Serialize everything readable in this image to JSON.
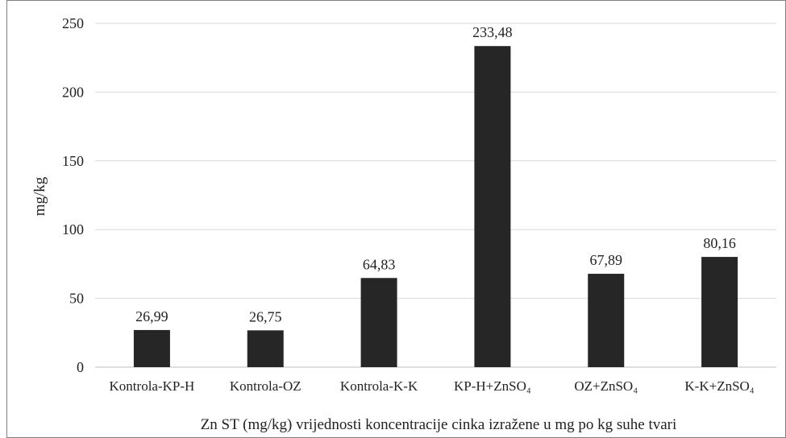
{
  "chart_data": {
    "type": "bar",
    "title": "",
    "xlabel": "Zn ST (mg/kg) vrijednosti koncentracije cinka izražene u mg po kg suhe tvari",
    "ylabel": "mg/kg",
    "ylim": [
      0,
      250
    ],
    "yticks": [
      "0",
      "50",
      "100",
      "150",
      "200",
      "250"
    ],
    "grid": true,
    "legend": "none",
    "bar_color": "#262626",
    "categories": [
      "Kontrola-KP-H",
      "Kontrola-OZ",
      "Kontrola-K-K",
      "KP-H+ZnSO₄",
      "OZ+ZnSO₄",
      "K-K+ZnSO₄"
    ],
    "values": [
      26.99,
      26.75,
      64.83,
      233.48,
      67.89,
      80.16
    ],
    "value_labels": [
      "26,99",
      "26,75",
      "64,83",
      "233,48",
      "67,89",
      "80,16"
    ]
  }
}
